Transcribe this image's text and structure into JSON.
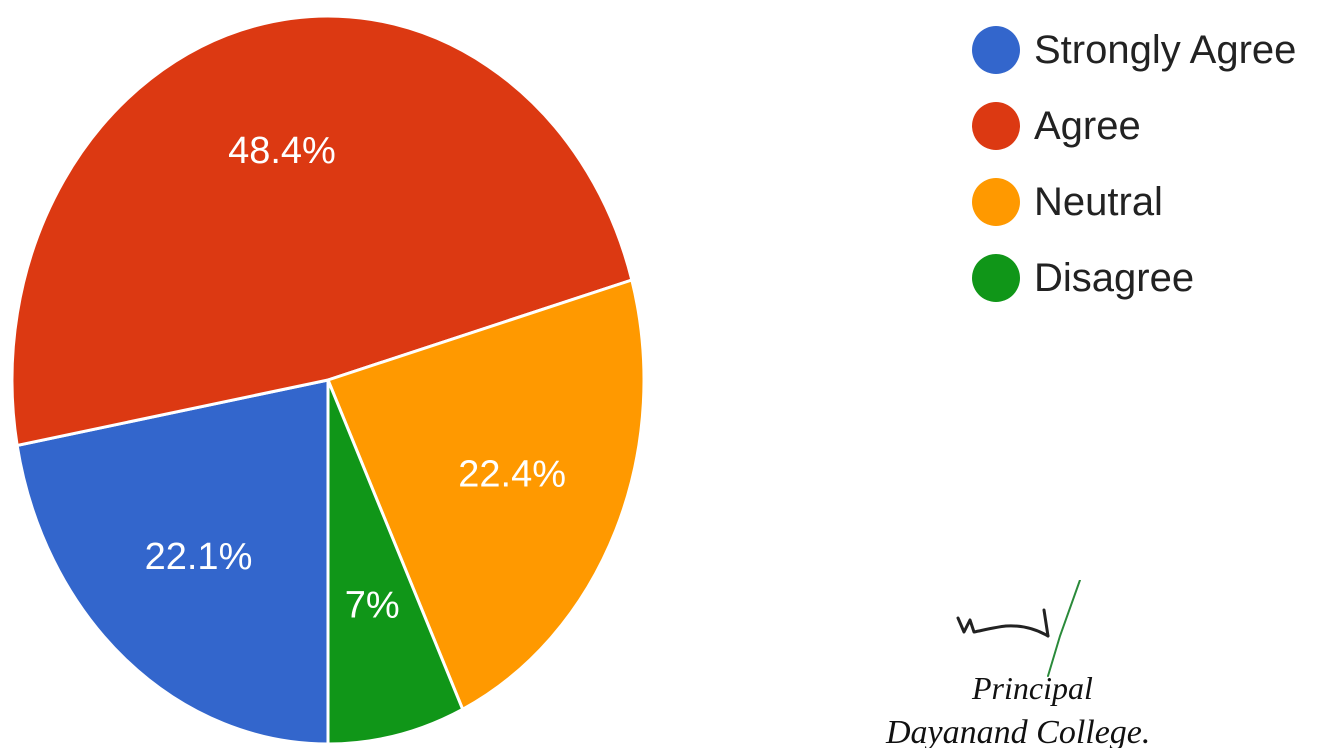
{
  "chart_data": {
    "type": "pie",
    "title": "",
    "slices": [
      {
        "name": "Strongly Agree",
        "value": 22.1,
        "label": "22.1%",
        "color": "#3366cc"
      },
      {
        "name": "Agree",
        "value": 48.4,
        "label": "48.4%",
        "color": "#dc3912"
      },
      {
        "name": "Neutral",
        "value": 22.4,
        "label": "22.4%",
        "color": "#ff9900"
      },
      {
        "name": "Disagree",
        "value": 7,
        "label": "7%",
        "color": "#109618"
      }
    ],
    "start_angle_deg": 90,
    "direction": "clockwise",
    "legend": {
      "position": "top-right",
      "entries": [
        "Strongly Agree",
        "Agree",
        "Neutral",
        "Disagree"
      ]
    }
  },
  "signature": {
    "title": "Principal",
    "organization": "Dayanand College."
  }
}
